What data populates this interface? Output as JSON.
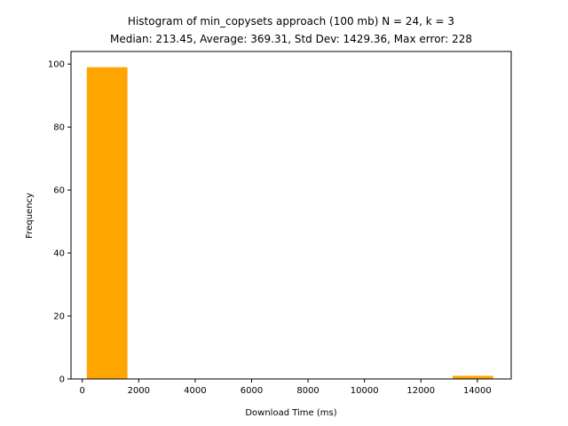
{
  "chart_data": {
    "type": "bar",
    "title": "Histogram of min_copysets approach (100 mb) N = 24, k = 3",
    "subtitle": "Median: 213.45, Average: 369.31, Std Dev: 1429.36, Max error: 228",
    "xlabel": "Download Time (ms)",
    "ylabel": "Frequency",
    "xlim": [
      -400,
      15200
    ],
    "ylim": [
      0,
      104
    ],
    "xticks": [
      0,
      2000,
      4000,
      6000,
      8000,
      10000,
      12000,
      14000
    ],
    "yticks": [
      0,
      20,
      40,
      60,
      80,
      100
    ],
    "bar_color": "#ffa500",
    "bins": [
      {
        "start": 160,
        "end": 1600,
        "value": 99
      },
      {
        "start": 1600,
        "end": 3040,
        "value": 0
      },
      {
        "start": 3040,
        "end": 4480,
        "value": 0
      },
      {
        "start": 4480,
        "end": 5920,
        "value": 0
      },
      {
        "start": 5920,
        "end": 7360,
        "value": 0
      },
      {
        "start": 7360,
        "end": 8800,
        "value": 0
      },
      {
        "start": 8800,
        "end": 10240,
        "value": 0
      },
      {
        "start": 10240,
        "end": 11680,
        "value": 0
      },
      {
        "start": 11680,
        "end": 13120,
        "value": 0
      },
      {
        "start": 13120,
        "end": 14560,
        "value": 1
      }
    ]
  }
}
